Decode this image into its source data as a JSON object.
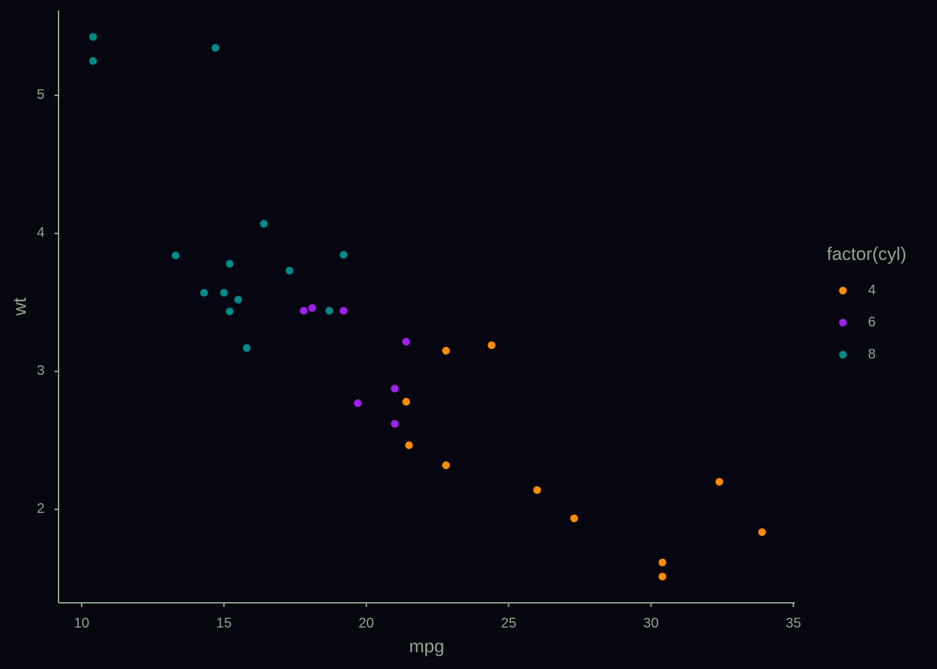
{
  "chart_data": {
    "type": "scatter",
    "x_label": "mpg",
    "y_label": "wt",
    "legend_title": "factor(cyl)",
    "xlim": [
      9.19,
      35.05
    ],
    "ylim": [
      1.323,
      5.616
    ],
    "xticks": [
      10,
      15,
      20,
      25,
      30,
      35
    ],
    "yticks": [
      2,
      3,
      4,
      5
    ],
    "grid": false,
    "legend_position": "right",
    "series": [
      {
        "name": "4",
        "color": "#ff8c00",
        "x": [
          22.8,
          24.4,
          22.8,
          32.4,
          30.4,
          33.9,
          21.5,
          27.3,
          26.0,
          30.4,
          21.4
        ],
        "values": [
          2.32,
          3.19,
          3.15,
          2.2,
          1.615,
          1.835,
          2.465,
          1.935,
          2.14,
          1.513,
          2.78
        ]
      },
      {
        "name": "6",
        "color": "#a020f0",
        "x": [
          21.0,
          21.0,
          21.4,
          18.1,
          19.2,
          17.8,
          19.7
        ],
        "values": [
          2.62,
          2.875,
          3.215,
          3.46,
          3.44,
          3.44,
          2.77
        ]
      },
      {
        "name": "8",
        "color": "#008b8b",
        "x": [
          18.7,
          14.3,
          16.4,
          17.3,
          15.2,
          10.4,
          10.4,
          14.7,
          15.5,
          15.2,
          13.3,
          19.2,
          15.8,
          15.0
        ],
        "values": [
          3.44,
          3.57,
          4.07,
          3.73,
          3.78,
          5.25,
          5.424,
          5.345,
          3.52,
          3.435,
          3.84,
          3.845,
          3.17,
          3.57
        ]
      }
    ]
  }
}
